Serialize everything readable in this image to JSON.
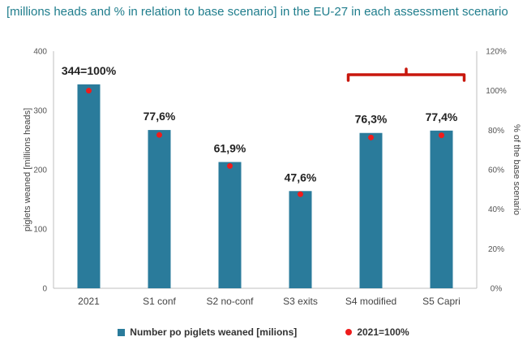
{
  "title": "[millions heads and % in relation to base scenario] in the EU-27 in each assessment scenario",
  "colors": {
    "bar": "#2a7b9b",
    "dot": "#ee1c1c",
    "bracket": "#c8170d",
    "grid": "#d9d9d9"
  },
  "chart_data": {
    "type": "bar",
    "categories": [
      "2021",
      "S1 conf",
      "S2 no-conf",
      "S3 exits",
      "S4 modified",
      "S5 Capri"
    ],
    "series": [
      {
        "name": "Number po piglets weaned [milions]",
        "type": "bar",
        "axis": "left",
        "values": [
          344,
          267,
          213,
          164,
          262,
          266
        ]
      },
      {
        "name": "2021=100%",
        "type": "scatter",
        "axis": "right",
        "values": [
          100,
          77.6,
          61.9,
          47.6,
          76.3,
          77.4
        ]
      }
    ],
    "data_labels": [
      "344=100%",
      "77,6%",
      "61,9%",
      "47,6%",
      "76,3%",
      "77,4%"
    ],
    "ylabel": "piglets weaned [millions heads]",
    "ylabel_right": "% of the base scenario",
    "ylim": [
      0,
      400
    ],
    "yticks": [
      "0",
      "100",
      "200",
      "300",
      "400"
    ],
    "ylim_right": [
      0,
      120
    ],
    "yticks_right": [
      "0%",
      "20%",
      "40%",
      "60%",
      "80%",
      "100%",
      "120%"
    ],
    "grid": false,
    "legend_position": "bottom",
    "annotation": "bracket over S4 modified and S5 Capri"
  }
}
